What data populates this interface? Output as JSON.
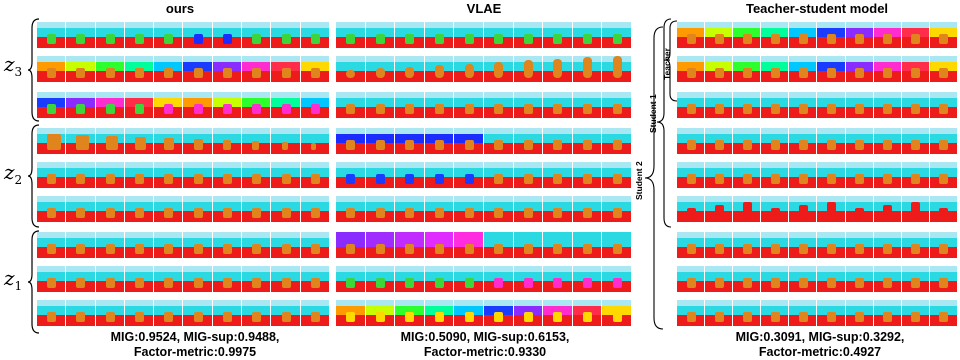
{
  "columns": [
    {
      "title": "ours",
      "metric_line1": "MIG:0.9524, MIG-sup:0.9488,",
      "metric_line2": "Factor-metric:0.9975"
    },
    {
      "title": "VLAE",
      "metric_line1": "MIG:0.5090, MIG-sup:0.6153,",
      "metric_line2": "Factor-metric:0.9330"
    },
    {
      "title": "Teacher-student model",
      "metric_line1": "MIG:0.3091, MIG-sup:0.3292,",
      "metric_line2": "Factor-metric:0.4927"
    }
  ],
  "row_labels": [
    {
      "z": "z",
      "sub": "3"
    },
    {
      "z": "z",
      "sub": "2"
    },
    {
      "z": "z",
      "sub": "1"
    }
  ],
  "bracket_labels": {
    "teacher": "Teacher",
    "student1": "Student 1",
    "student2": "Student 2"
  },
  "colors": {
    "floor": "#ee1b1b",
    "wall": "#2bd9e3",
    "sky": "#a9e8f3",
    "object": "#e0841d"
  }
}
